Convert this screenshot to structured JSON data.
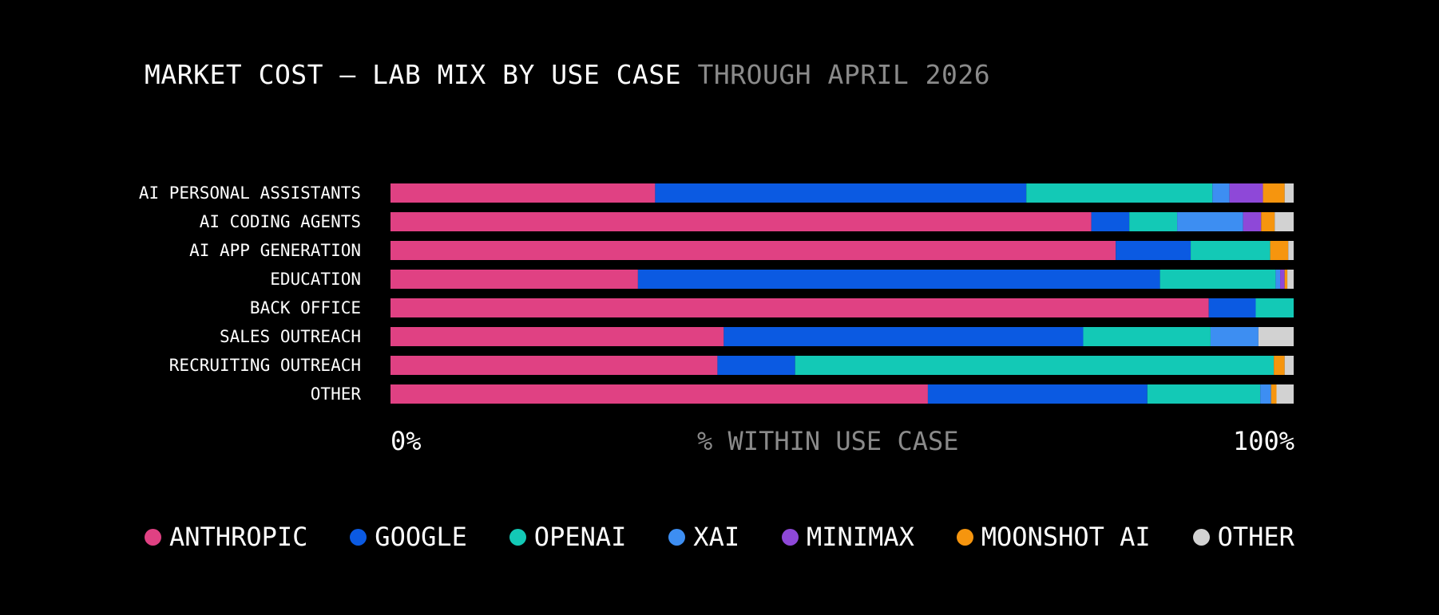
{
  "title": {
    "main": "MARKET COST – LAB MIX BY USE CASE",
    "sub": "THROUGH APRIL 2026"
  },
  "axis": {
    "min_label": "0%",
    "max_label": "100%",
    "center_label": "% WITHIN USE CASE"
  },
  "legend": [
    {
      "name": "ANTHROPIC",
      "color": "#e04183"
    },
    {
      "name": "GOOGLE",
      "color": "#0b5ae2"
    },
    {
      "name": "OPENAI",
      "color": "#13c9b6"
    },
    {
      "name": "XAI",
      "color": "#3d8ef2"
    },
    {
      "name": "MINIMAX",
      "color": "#8e48d8"
    },
    {
      "name": "MOONSHOT AI",
      "color": "#f6950e"
    },
    {
      "name": "OTHER",
      "color": "#d2d2d2"
    }
  ],
  "chart_data": {
    "type": "bar",
    "orientation": "horizontal",
    "stacked": true,
    "normalized": true,
    "xlabel": "% WITHIN USE CASE",
    "xlim": [
      0,
      100
    ],
    "categories": [
      "AI PERSONAL ASSISTANTS",
      "AI CODING AGENTS",
      "AI APP GENERATION",
      "EDUCATION",
      "BACK OFFICE",
      "SALES OUTREACH",
      "RECRUITING OUTREACH",
      "OTHER"
    ],
    "series": [
      {
        "name": "ANTHROPIC",
        "color": "#e04183",
        "values": [
          29.3,
          77.6,
          80.3,
          27.4,
          90.6,
          36.9,
          36.2,
          59.5
        ]
      },
      {
        "name": "GOOGLE",
        "color": "#0b5ae2",
        "values": [
          41.1,
          4.2,
          8.3,
          57.8,
          5.2,
          39.8,
          8.6,
          24.3
        ]
      },
      {
        "name": "OPENAI",
        "color": "#13c9b6",
        "values": [
          20.6,
          5.3,
          8.8,
          12.8,
          4.2,
          14.1,
          53.0,
          12.5
        ]
      },
      {
        "name": "XAI",
        "color": "#3d8ef2",
        "values": [
          1.9,
          7.3,
          0.0,
          0.5,
          0.0,
          5.3,
          0.0,
          1.2
        ]
      },
      {
        "name": "MINIMAX",
        "color": "#8e48d8",
        "values": [
          3.7,
          2.0,
          0.0,
          0.5,
          0.0,
          0.0,
          0.0,
          0.0
        ]
      },
      {
        "name": "MOONSHOT AI",
        "color": "#f6950e",
        "values": [
          2.4,
          1.5,
          2.0,
          0.3,
          0.0,
          0.0,
          1.2,
          0.6
        ]
      },
      {
        "name": "OTHER",
        "color": "#d2d2d2",
        "values": [
          1.0,
          2.1,
          0.6,
          0.7,
          0.0,
          3.9,
          1.0,
          1.9
        ]
      }
    ]
  }
}
